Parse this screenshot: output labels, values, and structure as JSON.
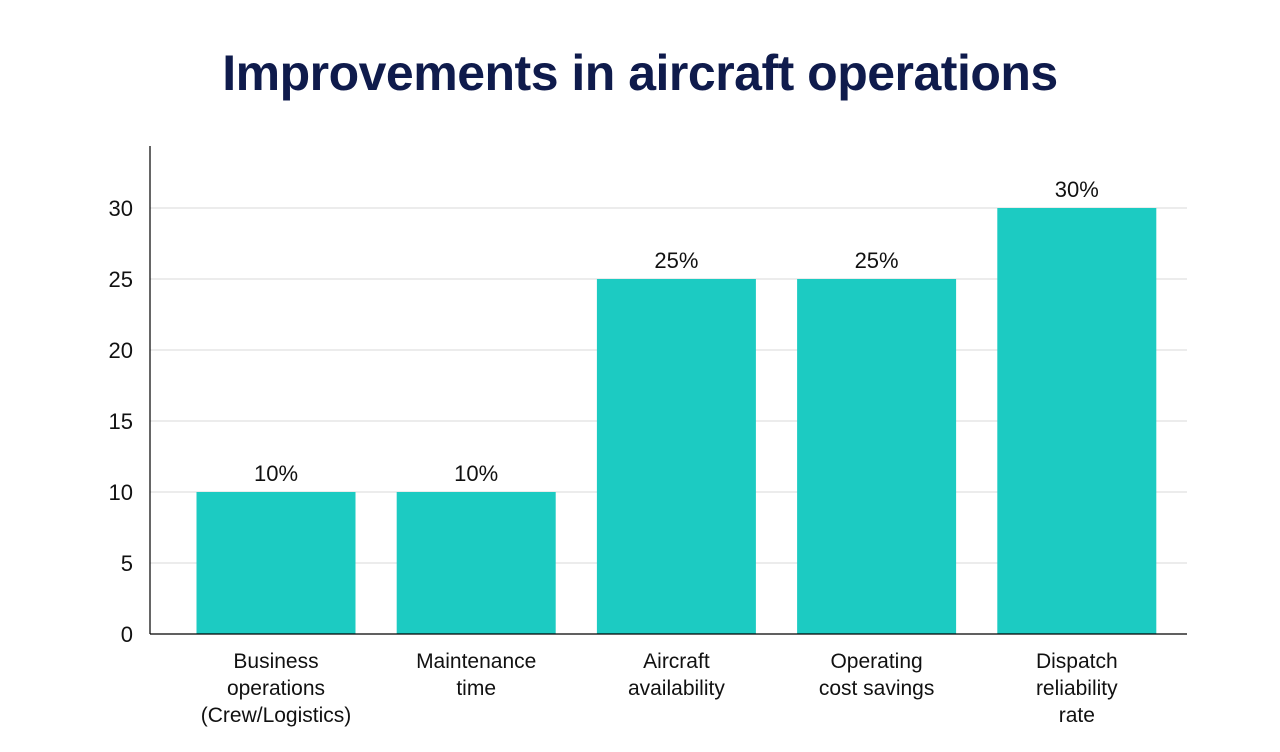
{
  "chart_data": {
    "type": "bar",
    "title": "Improvements in aircraft operations",
    "categories": [
      [
        "Business",
        "operations",
        "(Crew/Logistics)"
      ],
      [
        "Maintenance",
        "time"
      ],
      [
        "Aircraft",
        "availability"
      ],
      [
        "Operating",
        "cost savings"
      ],
      [
        "Dispatch",
        "reliability",
        "rate"
      ]
    ],
    "values": [
      10,
      10,
      25,
      25,
      30
    ],
    "data_labels": [
      "10%",
      "10%",
      "25%",
      "25%",
      "30%"
    ],
    "y_ticks": [
      0,
      5,
      10,
      15,
      20,
      25,
      30
    ],
    "ylim": [
      0,
      34
    ],
    "xlabel": "",
    "ylabel": "",
    "grid": true,
    "bar_color": "#1ccbc2",
    "grid_color": "#d9d9d9",
    "axis_color": "#000000",
    "title_color": "#0f1b4c"
  }
}
